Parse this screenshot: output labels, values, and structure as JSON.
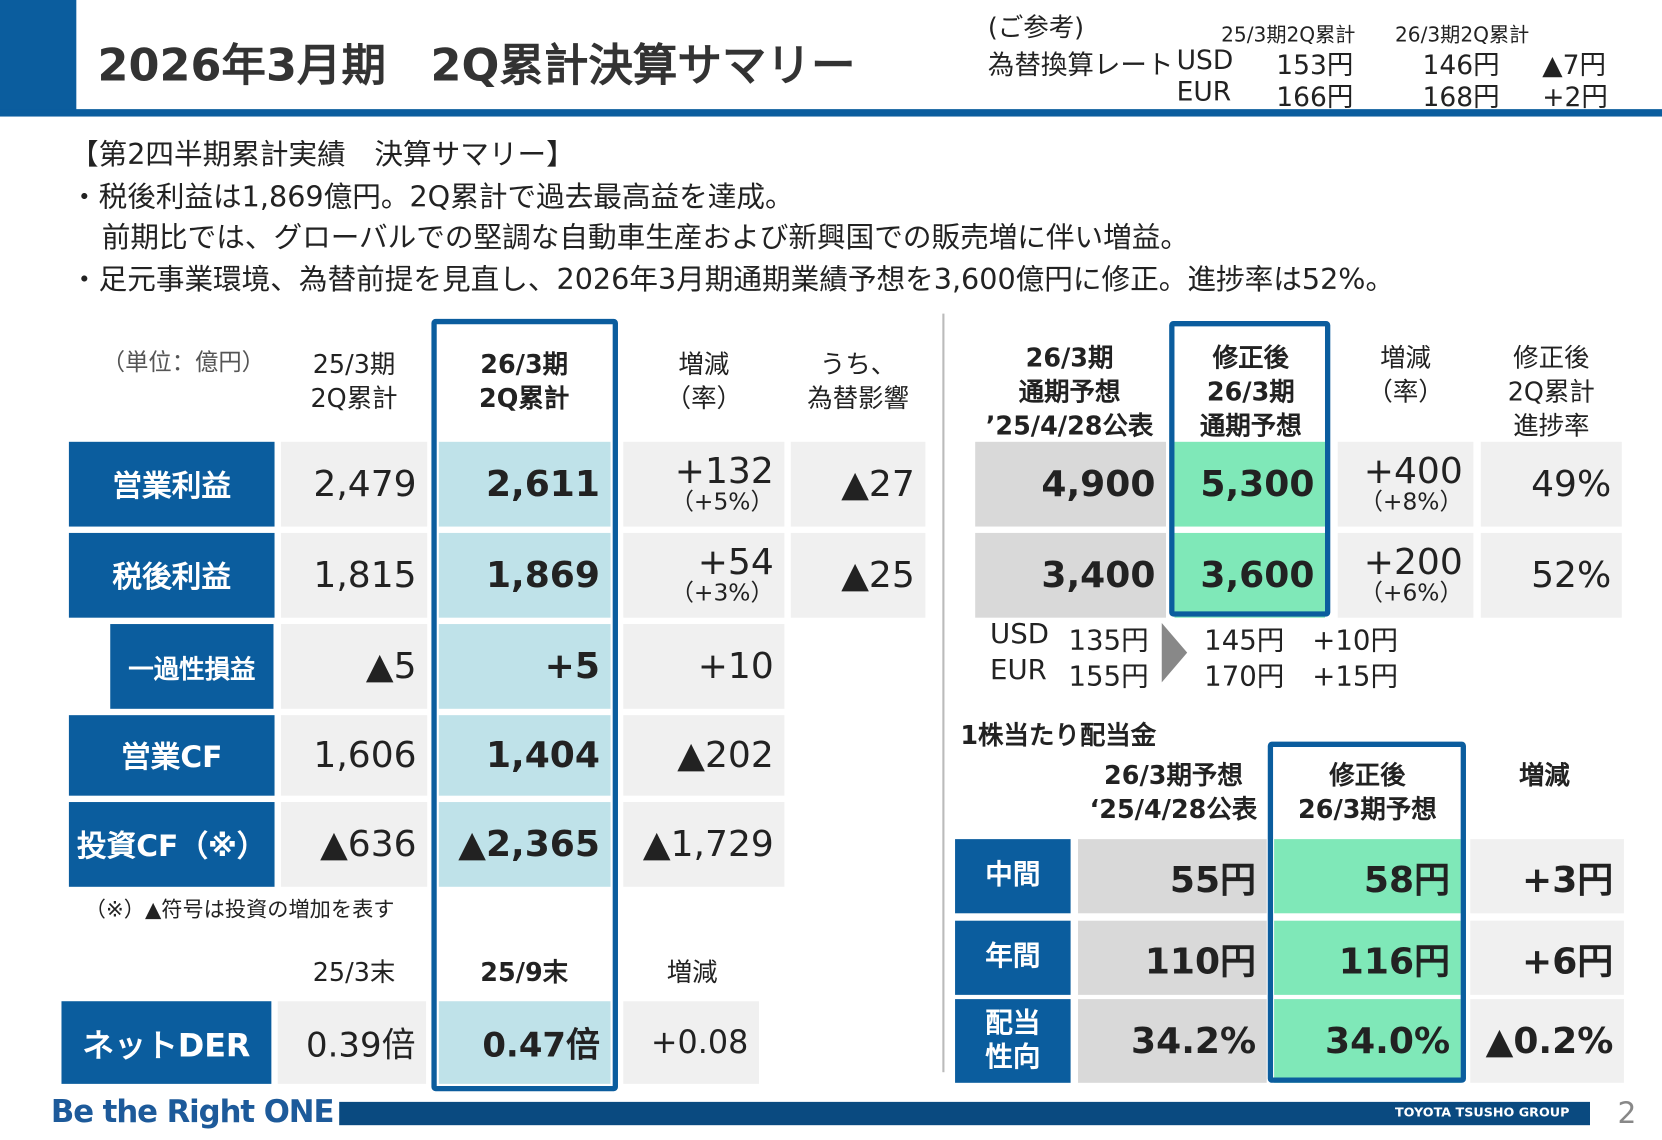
{
  "header": {
    "title": "2026年3月期　2Q累計決算サマリー",
    "fx_ref": {
      "label": "(ご参考)",
      "col1": "25/3期2Q累計",
      "col2": "26/3期2Q累計",
      "rate_label": "為替換算レート",
      "rows": [
        {
          "cur": "USD",
          "prev": "153円",
          "cur_val": "146円",
          "diff": "▲7円"
        },
        {
          "cur": "EUR",
          "prev": "166円",
          "cur_val": "168円",
          "diff": "+2円"
        }
      ]
    }
  },
  "summary": {
    "heading": "【第2四半期累計実績　決算サマリー】",
    "lines": [
      "・税後利益は1,869億円。2Q累計で過去最高益を達成。",
      "前期比では、グローバルでの堅調な自動車生産および新興国での販売増に伴い増益。",
      "・足元事業環境、為替前提を見直し、2026年3月期通期業績予想を3,600億円に修正。進捗率は52%。"
    ]
  },
  "left_table": {
    "unit": "（単位：億円）",
    "headers": [
      "25/3期\n2Q累計",
      "26/3期\n2Q累計",
      "増減\n（率）",
      "うち、\n為替影響"
    ],
    "rows": [
      {
        "label": "営業利益",
        "prev": "2,479",
        "cur": "2,611",
        "diff": "+132",
        "rate": "（+5%）",
        "fx": "▲27"
      },
      {
        "label": "税後利益",
        "prev": "1,815",
        "cur": "1,869",
        "diff": "+54",
        "rate": "（+3%）",
        "fx": "▲25"
      },
      {
        "label": "一過性損益",
        "prev": "▲5",
        "cur": "+5",
        "diff": "+10"
      },
      {
        "label": "営業CF",
        "prev": "1,606",
        "cur": "1,404",
        "diff": "▲202"
      },
      {
        "label": "投資CF（※）",
        "prev": "▲636",
        "cur": "▲2,365",
        "diff": "▲1,729"
      }
    ],
    "note": "（※）▲符号は投資の増加を表す",
    "der_headers": [
      "25/3末",
      "25/9末",
      "増減"
    ],
    "der": {
      "label": "ネットDER",
      "prev": "0.39倍",
      "cur": "0.47倍",
      "diff": "+0.08"
    }
  },
  "right_table": {
    "headers": [
      "26/3期\n通期予想\n’25/4/28公表",
      "修正後\n26/3期\n通期予想",
      "増減\n（率）",
      "修正後\n2Q累計\n進捗率"
    ],
    "rows": [
      {
        "prev": "4,900",
        "cur": "5,300",
        "diff": "+400",
        "rate": "（+8%）",
        "progress": "49%"
      },
      {
        "prev": "3,400",
        "cur": "3,600",
        "diff": "+200",
        "rate": "（+6%）",
        "progress": "52%"
      }
    ],
    "fx": [
      {
        "cur": "USD",
        "prev": "135円",
        "new": "145円",
        "diff": "+10円"
      },
      {
        "cur": "EUR",
        "prev": "155円",
        "new": "170円",
        "diff": "+15円"
      }
    ]
  },
  "dividend": {
    "title": "1株当たり配当金",
    "headers": [
      "26/3期予想\n‘25/4/28公表",
      "修正後\n26/3期予想",
      "増減"
    ],
    "rows": [
      {
        "label": "中間",
        "prev": "55円",
        "cur": "58円",
        "diff": "+3円"
      },
      {
        "label": "年間",
        "prev": "110円",
        "cur": "116円",
        "diff": "+6円"
      },
      {
        "label": "配当\n性向",
        "prev": "34.2%",
        "cur": "34.0%",
        "diff": "▲0.2%"
      }
    ]
  },
  "footer": {
    "slogan": "Be the Right ONE",
    "group": "TOYOTA TSUSHO GROUP",
    "page": "2"
  },
  "colors": {
    "brand_blue": "#0b5d9e",
    "highlight_blue": "#bfe2e9",
    "highlight_green": "#7fe8b8"
  }
}
